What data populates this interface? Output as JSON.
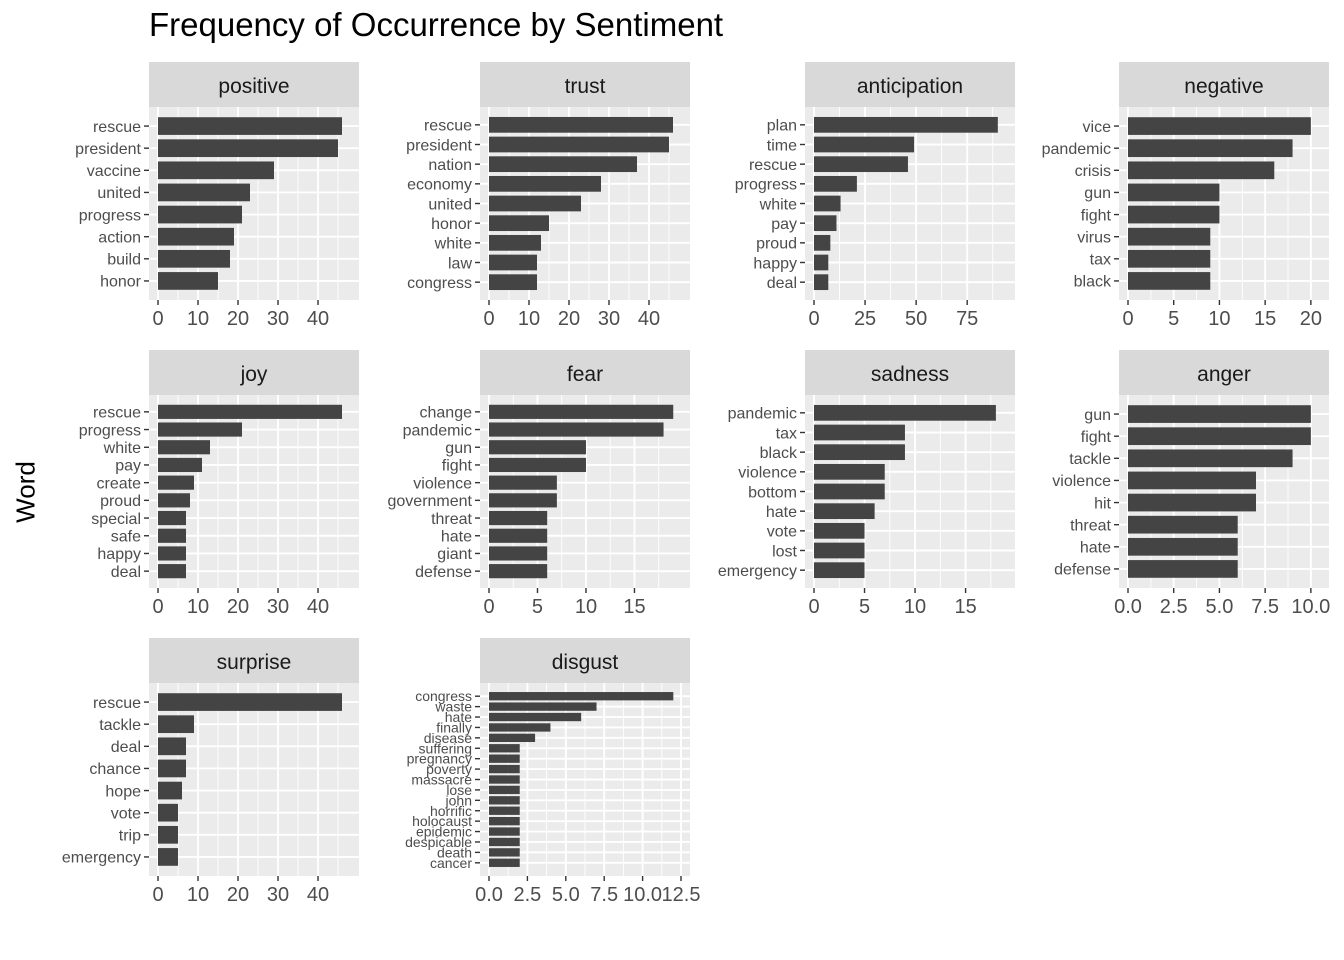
{
  "chart_data": {
    "type": "bar",
    "orientation": "horizontal",
    "title": "Frequency of Occurrence by Sentiment",
    "xlabel": "",
    "ylabel": "Word",
    "grid": true,
    "colors": {
      "bar": "#444444",
      "panel_bg": "#ebebeb",
      "strip_bg": "#d9d9d9",
      "grid": "#ffffff",
      "text": "#000000",
      "tick_text": "#4d4d4d"
    },
    "facets": [
      {
        "name": "positive",
        "categories": [
          "rescue",
          "president",
          "vaccine",
          "united",
          "progress",
          "action",
          "build",
          "honor"
        ],
        "values": [
          46,
          45,
          29,
          23,
          21,
          19,
          18,
          15
        ],
        "xlim": [
          0,
          48
        ],
        "ticks": [
          0,
          10,
          20,
          30,
          40
        ],
        "tick_labels": [
          "0",
          "10",
          "20",
          "30",
          "40"
        ]
      },
      {
        "name": "trust",
        "categories": [
          "rescue",
          "president",
          "nation",
          "economy",
          "united",
          "honor",
          "white",
          "law",
          "congress"
        ],
        "values": [
          46,
          45,
          37,
          28,
          23,
          15,
          13,
          12,
          12
        ],
        "xlim": [
          0,
          48
        ],
        "ticks": [
          0,
          10,
          20,
          30,
          40
        ],
        "tick_labels": [
          "0",
          "10",
          "20",
          "30",
          "40"
        ]
      },
      {
        "name": "anticipation",
        "categories": [
          "plan",
          "time",
          "rescue",
          "progress",
          "white",
          "pay",
          "proud",
          "happy",
          "deal"
        ],
        "values": [
          90,
          49,
          46,
          21,
          13,
          11,
          8,
          7,
          7
        ],
        "xlim": [
          0,
          94
        ],
        "ticks": [
          0,
          25,
          50,
          75
        ],
        "tick_labels": [
          "0",
          "25",
          "50",
          "75"
        ]
      },
      {
        "name": "negative",
        "categories": [
          "vice",
          "pandemic",
          "crisis",
          "gun",
          "fight",
          "virus",
          "tax",
          "black"
        ],
        "values": [
          20,
          18,
          16,
          10,
          10,
          9,
          9,
          9
        ],
        "xlim": [
          0,
          21
        ],
        "ticks": [
          0,
          5,
          10,
          15,
          20
        ],
        "tick_labels": [
          "0",
          "5",
          "10",
          "15",
          "20"
        ]
      },
      {
        "name": "joy",
        "categories": [
          "rescue",
          "progress",
          "white",
          "pay",
          "create",
          "proud",
          "special",
          "safe",
          "happy",
          "deal"
        ],
        "values": [
          46,
          21,
          13,
          11,
          9,
          8,
          7,
          7,
          7,
          7
        ],
        "xlim": [
          0,
          48
        ],
        "ticks": [
          0,
          10,
          20,
          30,
          40
        ],
        "tick_labels": [
          "0",
          "10",
          "20",
          "30",
          "40"
        ]
      },
      {
        "name": "fear",
        "categories": [
          "change",
          "pandemic",
          "gun",
          "fight",
          "violence",
          "government",
          "threat",
          "hate",
          "giant",
          "defense"
        ],
        "values": [
          19,
          18,
          10,
          10,
          7,
          7,
          6,
          6,
          6,
          6
        ],
        "xlim": [
          0,
          19.8
        ],
        "ticks": [
          0,
          5,
          10,
          15
        ],
        "tick_labels": [
          "0",
          "5",
          "10",
          "15"
        ]
      },
      {
        "name": "sadness",
        "categories": [
          "pandemic",
          "tax",
          "black",
          "violence",
          "bottom",
          "hate",
          "vote",
          "lost",
          "emergency"
        ],
        "values": [
          18,
          9,
          9,
          7,
          7,
          6,
          5,
          5,
          5
        ],
        "xlim": [
          0,
          19
        ],
        "ticks": [
          0,
          5,
          10,
          15
        ],
        "tick_labels": [
          "0",
          "5",
          "10",
          "15"
        ]
      },
      {
        "name": "anger",
        "categories": [
          "gun",
          "fight",
          "tackle",
          "violence",
          "hit",
          "threat",
          "hate",
          "defense"
        ],
        "values": [
          10,
          10,
          9,
          7,
          7,
          6,
          6,
          6
        ],
        "xlim": [
          0,
          10.5
        ],
        "ticks": [
          0,
          2.5,
          5,
          7.5,
          10
        ],
        "tick_labels": [
          "0.0",
          "2.5",
          "5.0",
          "7.5",
          "10.0"
        ]
      },
      {
        "name": "surprise",
        "categories": [
          "rescue",
          "tackle",
          "deal",
          "chance",
          "hope",
          "vote",
          "trip",
          "emergency"
        ],
        "values": [
          46,
          9,
          7,
          7,
          6,
          5,
          5,
          5
        ],
        "xlim": [
          0,
          48
        ],
        "ticks": [
          0,
          10,
          20,
          30,
          40
        ],
        "tick_labels": [
          "0",
          "10",
          "20",
          "30",
          "40"
        ]
      },
      {
        "name": "disgust",
        "categories": [
          "congress",
          "waste",
          "hate",
          "finally",
          "disease",
          "suffering",
          "pregnancy",
          "poverty",
          "massacre",
          "lose",
          "john",
          "horrific",
          "holocaust",
          "epidemic",
          "despicable",
          "death",
          "cancer"
        ],
        "values": [
          12,
          7,
          6,
          4,
          3,
          2,
          2,
          2,
          2,
          2,
          2,
          2,
          2,
          2,
          2,
          2,
          2
        ],
        "xlim": [
          0,
          12.5
        ],
        "ticks": [
          0,
          2.5,
          5,
          7.5,
          10,
          12.5
        ],
        "tick_labels": [
          "0.0",
          "2.5",
          "5.0",
          "7.5",
          "10.0",
          "12.5"
        ]
      }
    ]
  }
}
